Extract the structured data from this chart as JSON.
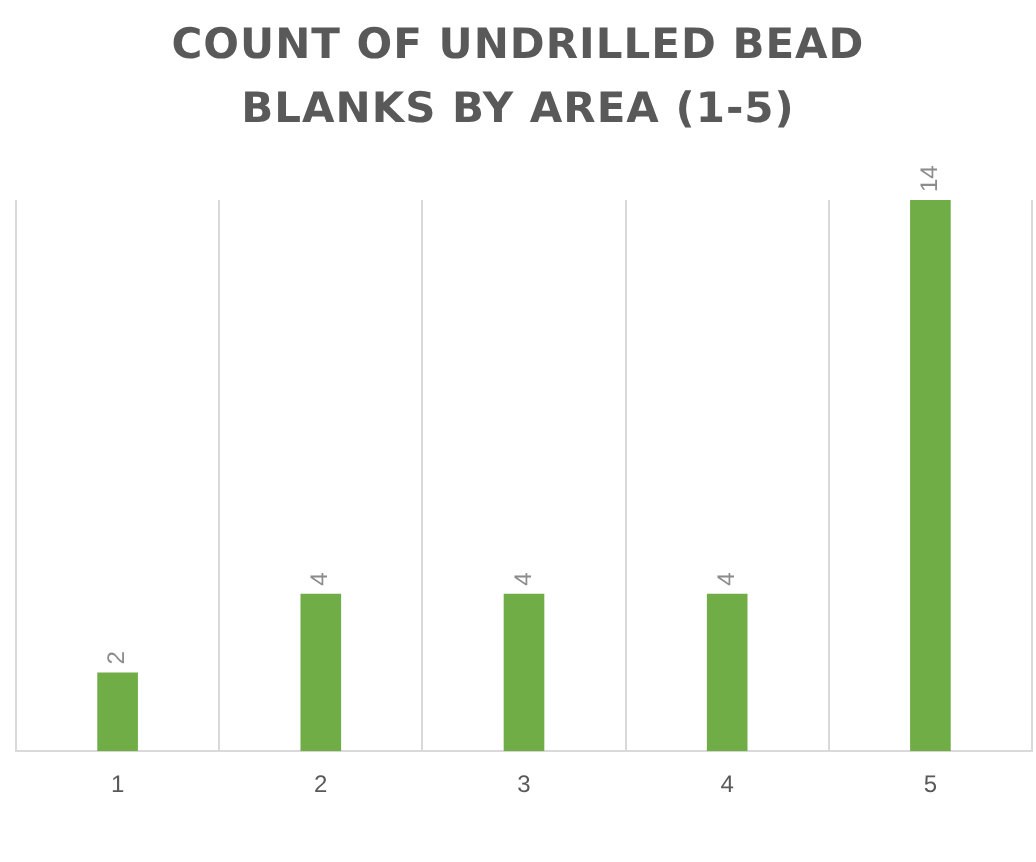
{
  "chart_data": {
    "type": "bar",
    "title": "COUNT OF UNDRILLED BEAD BLANKS BY AREA (1-5)",
    "categories": [
      "1",
      "2",
      "3",
      "4",
      "5"
    ],
    "values": [
      2,
      4,
      4,
      4,
      14
    ],
    "color": "#70ad47",
    "data_labels": true,
    "grid": "x",
    "legend": false
  }
}
